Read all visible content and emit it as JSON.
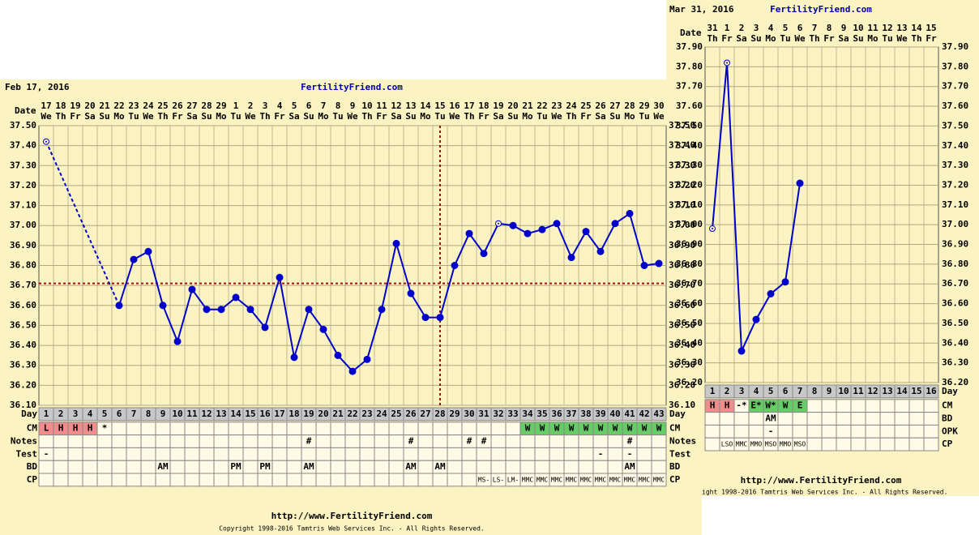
{
  "chart_data": [
    {
      "type": "line",
      "title": "Feb 17, 2016",
      "site": "FertilityFriend.com",
      "date_label": "Date",
      "day_label": "Day",
      "dates": [
        17,
        18,
        19,
        20,
        21,
        22,
        23,
        24,
        25,
        26,
        27,
        28,
        29,
        1,
        2,
        3,
        4,
        5,
        6,
        7,
        8,
        9,
        10,
        11,
        12,
        13,
        14,
        15,
        16,
        17,
        18,
        19,
        20,
        21,
        22,
        23,
        24,
        25,
        26,
        27,
        28,
        29,
        30
      ],
      "weekdays": [
        "We",
        "Th",
        "Fr",
        "Sa",
        "Su",
        "Mo",
        "Tu",
        "We",
        "Th",
        "Fr",
        "Sa",
        "Su",
        "Mo",
        "Tu",
        "We",
        "Th",
        "Fr",
        "Sa",
        "Su",
        "Mo",
        "Tu",
        "We",
        "Th",
        "Fr",
        "Sa",
        "Su",
        "Mo",
        "Tu",
        "We",
        "Th",
        "Fr",
        "Sa",
        "Su",
        "Mo",
        "Tu",
        "We",
        "Th",
        "Fr",
        "Sa",
        "Su",
        "Mo",
        "Tu",
        "We"
      ],
      "days": [
        1,
        2,
        3,
        4,
        5,
        6,
        7,
        8,
        9,
        10,
        11,
        12,
        13,
        14,
        15,
        16,
        17,
        18,
        19,
        20,
        21,
        22,
        23,
        24,
        25,
        26,
        27,
        28,
        29,
        30,
        31,
        32,
        33,
        34,
        35,
        36,
        37,
        38,
        39,
        40,
        41,
        42,
        43
      ],
      "series": [
        {
          "color": "#0000cc",
          "values": [
            37.42,
            null,
            null,
            null,
            null,
            36.6,
            36.83,
            36.87,
            36.6,
            36.42,
            36.68,
            36.58,
            36.58,
            36.64,
            36.58,
            36.49,
            36.74,
            36.34,
            36.58,
            36.48,
            36.35,
            36.27,
            36.33,
            36.58,
            36.91,
            36.66,
            36.54,
            36.54,
            36.8,
            36.96,
            36.86,
            37.01,
            37.0,
            36.96,
            36.98,
            37.01,
            36.84,
            36.97,
            36.87,
            37.01,
            37.06,
            36.8,
            36.81
          ]
        }
      ],
      "open_markers": [
        0,
        31
      ],
      "coverline": {
        "value": 36.71,
        "color": "#a01010"
      },
      "ovulation_day": 28,
      "ylim": [
        36.1,
        37.5
      ],
      "yticks": [
        {
          "value": 36.1,
          "label": "36.10"
        },
        {
          "value": 36.2,
          "label": "36.20"
        },
        {
          "value": 36.3,
          "label": "36.30"
        },
        {
          "value": 36.4,
          "label": "36.40"
        },
        {
          "value": 36.5,
          "label": "36.50"
        },
        {
          "value": 36.6,
          "label": "36.60"
        },
        {
          "value": 36.7,
          "label": "36.70"
        },
        {
          "value": 36.8,
          "label": "36.80"
        },
        {
          "value": 36.9,
          "label": "36.90"
        },
        {
          "value": 37.0,
          "label": "37.00"
        },
        {
          "value": 37.1,
          "label": "37.10"
        },
        {
          "value": 37.2,
          "label": "37.20"
        },
        {
          "value": 37.3,
          "label": "37.30"
        },
        {
          "value": 37.4,
          "label": "37.40"
        },
        {
          "value": 37.5,
          "label": "37.50"
        }
      ],
      "grid": true,
      "row_label_sides": [
        "left",
        "right"
      ],
      "rows": [
        {
          "label": "CM",
          "cells": [
            {
              "text": "L",
              "color": "#f08c8c"
            },
            {
              "text": "H",
              "color": "#f08c8c"
            },
            {
              "text": "H",
              "color": "#f08c8c"
            },
            {
              "text": "H",
              "color": "#f08c8c"
            },
            "*",
            null,
            null,
            null,
            null,
            null,
            null,
            null,
            null,
            null,
            null,
            null,
            null,
            null,
            null,
            null,
            null,
            null,
            null,
            null,
            null,
            null,
            null,
            null,
            null,
            null,
            null,
            null,
            null,
            {
              "text": "W",
              "color": "#66cc66"
            },
            {
              "text": "W",
              "color": "#66cc66"
            },
            {
              "text": "W",
              "color": "#66cc66"
            },
            {
              "text": "W",
              "color": "#66cc66"
            },
            {
              "text": "W",
              "color": "#66cc66"
            },
            {
              "text": "W",
              "color": "#66cc66"
            },
            {
              "text": "W",
              "color": "#66cc66"
            },
            {
              "text": "W",
              "color": "#66cc66"
            },
            {
              "text": "W",
              "color": "#66cc66"
            },
            {
              "text": "W",
              "color": "#66cc66"
            }
          ]
        },
        {
          "label": "Notes",
          "cells": [
            null,
            null,
            null,
            null,
            null,
            null,
            null,
            null,
            null,
            null,
            null,
            null,
            null,
            null,
            null,
            null,
            null,
            null,
            "#",
            null,
            null,
            null,
            null,
            null,
            null,
            "#",
            null,
            null,
            null,
            "#",
            "#",
            null,
            null,
            null,
            null,
            null,
            null,
            null,
            null,
            null,
            "#",
            null,
            null
          ]
        },
        {
          "label": "Test",
          "cells": [
            "-",
            null,
            null,
            null,
            null,
            null,
            null,
            null,
            null,
            null,
            null,
            null,
            null,
            null,
            null,
            null,
            null,
            null,
            null,
            null,
            null,
            null,
            null,
            null,
            null,
            null,
            null,
            null,
            null,
            null,
            null,
            null,
            null,
            null,
            null,
            null,
            null,
            null,
            "-",
            null,
            "-",
            null,
            null
          ]
        },
        {
          "label": "BD",
          "cells": [
            null,
            null,
            null,
            null,
            null,
            null,
            null,
            null,
            "AM",
            null,
            null,
            null,
            null,
            "PM",
            null,
            "PM",
            null,
            null,
            "AM",
            null,
            null,
            null,
            null,
            null,
            null,
            "AM",
            null,
            "AM",
            null,
            null,
            null,
            null,
            null,
            null,
            null,
            null,
            null,
            null,
            null,
            null,
            "AM",
            null,
            null
          ]
        },
        {
          "label": "CP",
          "cells": [
            null,
            null,
            null,
            null,
            null,
            null,
            null,
            null,
            null,
            null,
            null,
            null,
            null,
            null,
            null,
            null,
            null,
            null,
            null,
            null,
            null,
            null,
            null,
            null,
            null,
            null,
            null,
            null,
            null,
            null,
            "MS-",
            "LS-",
            "LM-",
            "MMC",
            "MMC",
            "MMC",
            "MMC",
            "MMC",
            "MMC",
            "MMC",
            "MMC",
            "MMC",
            "MMC"
          ]
        }
      ],
      "footer": "http://www.FertilityFriend.com",
      "copyright": "Copyright 1998-2016 Tamtris Web Services Inc. - All Rights Reserved."
    },
    {
      "type": "line",
      "title": "Mar 31, 2016",
      "site": "FertilityFriend.com",
      "date_label": "Date",
      "day_label": "Day",
      "dates": [
        31,
        1,
        2,
        3,
        4,
        5,
        6,
        7,
        8,
        9,
        10,
        11,
        12,
        13,
        14,
        15
      ],
      "weekdays": [
        "Th",
        "Fr",
        "Sa",
        "Su",
        "Mo",
        "Tu",
        "We",
        "Th",
        "Fr",
        "Sa",
        "Su",
        "Mo",
        "Tu",
        "We",
        "Th",
        "Fr"
      ],
      "days": [
        1,
        2,
        3,
        4,
        5,
        6,
        7,
        8,
        9,
        10,
        11,
        12,
        13,
        14,
        15,
        16
      ],
      "series": [
        {
          "color": "#0000cc",
          "values": [
            36.98,
            37.82,
            36.36,
            36.52,
            36.65,
            36.71,
            37.21,
            null,
            null,
            null,
            null,
            null,
            null,
            null,
            null,
            null
          ]
        }
      ],
      "open_markers": [
        0,
        1
      ],
      "ylim": [
        36.2,
        37.9
      ],
      "yticks": [
        {
          "value": 36.2,
          "label": "36.20"
        },
        {
          "value": 36.3,
          "label": "36.30"
        },
        {
          "value": 36.4,
          "label": "36.40"
        },
        {
          "value": 36.5,
          "label": "36.50"
        },
        {
          "value": 36.6,
          "label": "36.60"
        },
        {
          "value": 36.7,
          "label": "36.70"
        },
        {
          "value": 36.8,
          "label": "36.80"
        },
        {
          "value": 36.9,
          "label": "36.90"
        },
        {
          "value": 37.0,
          "label": "37.00"
        },
        {
          "value": 37.1,
          "label": "37.10"
        },
        {
          "value": 37.2,
          "label": "37.20"
        },
        {
          "value": 37.3,
          "label": "37.30"
        },
        {
          "value": 37.4,
          "label": "37.40"
        },
        {
          "value": 37.5,
          "label": "37.50"
        },
        {
          "value": 37.6,
          "label": "37.60"
        },
        {
          "value": 37.7,
          "label": "37.70"
        },
        {
          "value": 37.8,
          "label": "37.80"
        },
        {
          "value": 37.9,
          "label": "37.90"
        }
      ],
      "grid": true,
      "row_label_sides": [
        "right"
      ],
      "rows": [
        {
          "label": "CM",
          "cells": [
            {
              "text": "H",
              "color": "#f08c8c"
            },
            {
              "text": "H",
              "color": "#f08c8c"
            },
            "-*",
            {
              "text": "E*",
              "color": "#66cc66"
            },
            {
              "text": "W*",
              "color": "#66cc66"
            },
            {
              "text": "W",
              "color": "#66cc66"
            },
            {
              "text": "E",
              "color": "#66cc66"
            },
            null,
            null,
            null,
            null,
            null,
            null,
            null,
            null,
            null
          ]
        },
        {
          "label": "BD",
          "cells": [
            null,
            null,
            null,
            null,
            "AM",
            null,
            null,
            null,
            null,
            null,
            null,
            null,
            null,
            null,
            null,
            null
          ]
        },
        {
          "label": "OPK",
          "cells": [
            null,
            null,
            null,
            null,
            "-",
            null,
            null,
            null,
            null,
            null,
            null,
            null,
            null,
            null,
            null,
            null
          ]
        },
        {
          "label": "CP",
          "cells": [
            null,
            "LSO",
            "MMC",
            "MMO",
            "MSO",
            "MMO",
            "MSO",
            null,
            null,
            null,
            null,
            null,
            null,
            null,
            null,
            null
          ]
        }
      ],
      "footer": "http://www.FertilityFriend.com",
      "copyright": "ight 1998-2016 Tamtris Web Services Inc. - All Rights Reserved."
    }
  ]
}
